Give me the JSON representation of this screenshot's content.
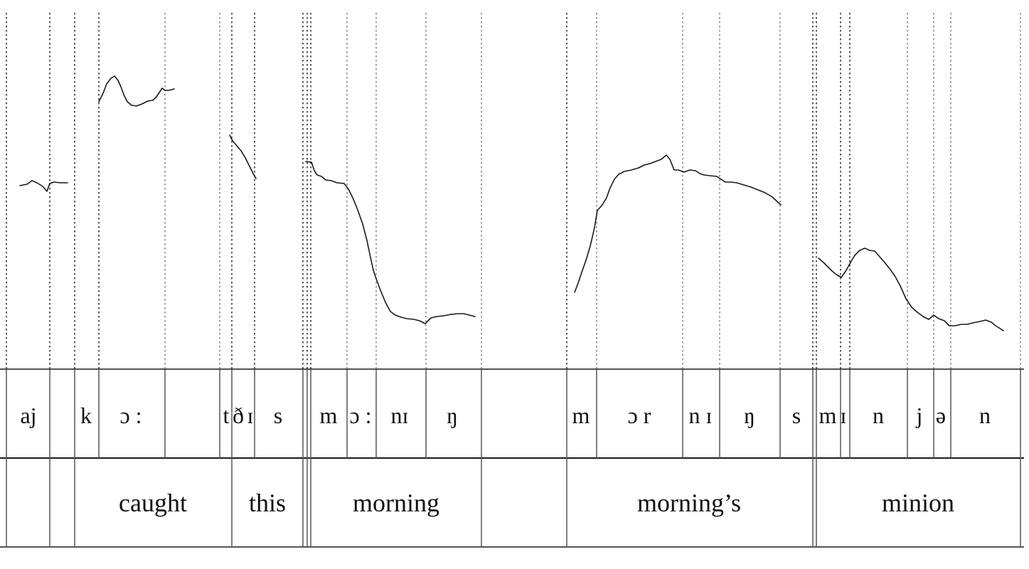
{
  "colors": {
    "line": "#1a1a1a",
    "boundary": "#555555",
    "dotted": "#333333",
    "dotted_light": "#888888",
    "background": "#ffffff"
  },
  "phone_tier": [
    {
      "text": "aj"
    },
    {
      "text": "k"
    },
    {
      "text": "ɔ :"
    },
    {
      "text": "t"
    },
    {
      "text": "ð"
    },
    {
      "text": "ɪ"
    },
    {
      "text": "s"
    },
    {
      "text": "m"
    },
    {
      "text": "ɔ :"
    },
    {
      "text": "nɪ"
    },
    {
      "text": "ŋ"
    },
    {
      "text": "m"
    },
    {
      "text": "ɔ r"
    },
    {
      "text": "n ɪ"
    },
    {
      "text": "ŋ"
    },
    {
      "text": "s"
    },
    {
      "text": "m"
    },
    {
      "text": "ɪ"
    },
    {
      "text": "n"
    },
    {
      "text": "j"
    },
    {
      "text": "ə"
    },
    {
      "text": "n"
    }
  ],
  "word_tier": [
    {
      "text": "caught"
    },
    {
      "text": "this"
    },
    {
      "text": "morning"
    },
    {
      "text": "morning’s"
    },
    {
      "text": "minion"
    }
  ]
}
